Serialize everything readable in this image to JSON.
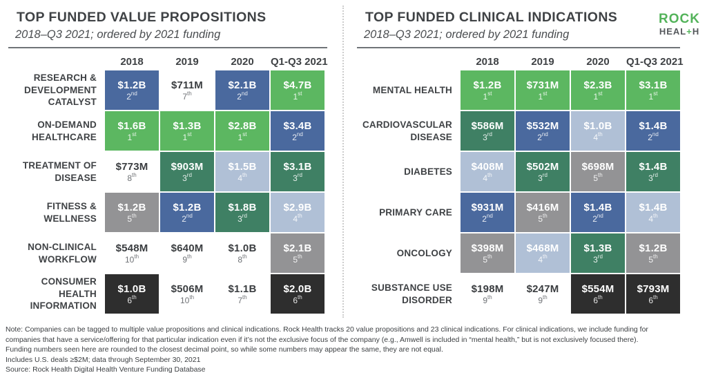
{
  "logo": {
    "line1": "ROCK",
    "line2_pre": "HEAL",
    "line2_plus": "+",
    "line2_post": "H"
  },
  "rank_colors": {
    "1": "#5cb761",
    "2": "#4a699e",
    "3": "#3f8064",
    "4": "#b0c0d6",
    "5": "#939395",
    "6": "#2e2e2e",
    "unranked": "#ffffff"
  },
  "text_colors": {
    "on_color": "#ffffff",
    "on_white_amount": "#3a3d40",
    "on_white_rank": "#6e7175",
    "title": "#3f4245",
    "logo_green": "#53b35a",
    "logo_gray": "#55585c"
  },
  "chart_data": [
    {
      "type": "heatmap",
      "title": "TOP FUNDED VALUE PROPOSITIONS",
      "subtitle": "2018–Q3 2021; ordered by 2021 funding",
      "columns": [
        "2018",
        "2019",
        "2020",
        "Q1-Q3 2021"
      ],
      "rows": [
        {
          "label": "RESEARCH & DEVELOPMENT CATALYST",
          "cells": [
            {
              "value": "$1.2B",
              "rank": 2
            },
            {
              "value": "$711M",
              "rank": 7
            },
            {
              "value": "$2.1B",
              "rank": 2
            },
            {
              "value": "$4.7B",
              "rank": 1
            }
          ]
        },
        {
          "label": "ON-DEMAND HEALTHCARE",
          "cells": [
            {
              "value": "$1.6B",
              "rank": 1
            },
            {
              "value": "$1.3B",
              "rank": 1
            },
            {
              "value": "$2.8B",
              "rank": 1
            },
            {
              "value": "$3.4B",
              "rank": 2
            }
          ]
        },
        {
          "label": "TREATMENT OF DISEASE",
          "cells": [
            {
              "value": "$773M",
              "rank": 8
            },
            {
              "value": "$903M",
              "rank": 3
            },
            {
              "value": "$1.5B",
              "rank": 4
            },
            {
              "value": "$3.1B",
              "rank": 3
            }
          ]
        },
        {
          "label": "FITNESS & WELLNESS",
          "cells": [
            {
              "value": "$1.2B",
              "rank": 5
            },
            {
              "value": "$1.2B",
              "rank": 2
            },
            {
              "value": "$1.8B",
              "rank": 3
            },
            {
              "value": "$2.9B",
              "rank": 4
            }
          ]
        },
        {
          "label": "NON-CLINICAL WORKFLOW",
          "cells": [
            {
              "value": "$548M",
              "rank": 10
            },
            {
              "value": "$640M",
              "rank": 9
            },
            {
              "value": "$1.0B",
              "rank": 8
            },
            {
              "value": "$2.1B",
              "rank": 5
            }
          ]
        },
        {
          "label": "CONSUMER HEALTH INFORMATION",
          "cells": [
            {
              "value": "$1.0B",
              "rank": 6
            },
            {
              "value": "$506M",
              "rank": 10
            },
            {
              "value": "$1.1B",
              "rank": 7
            },
            {
              "value": "$2.0B",
              "rank": 6
            }
          ]
        }
      ]
    },
    {
      "type": "heatmap",
      "title": "TOP FUNDED CLINICAL INDICATIONS",
      "subtitle": "2018–Q3 2021; ordered by 2021 funding",
      "columns": [
        "2018",
        "2019",
        "2020",
        "Q1-Q3 2021"
      ],
      "rows": [
        {
          "label": "MENTAL HEALTH",
          "cells": [
            {
              "value": "$1.2B",
              "rank": 1
            },
            {
              "value": "$731M",
              "rank": 1
            },
            {
              "value": "$2.3B",
              "rank": 1
            },
            {
              "value": "$3.1B",
              "rank": 1
            }
          ]
        },
        {
          "label": "CARDIOVASCULAR DISEASE",
          "cells": [
            {
              "value": "$586M",
              "rank": 3
            },
            {
              "value": "$532M",
              "rank": 2
            },
            {
              "value": "$1.0B",
              "rank": 4
            },
            {
              "value": "$1.4B",
              "rank": 2
            }
          ]
        },
        {
          "label": "DIABETES",
          "cells": [
            {
              "value": "$408M",
              "rank": 4
            },
            {
              "value": "$502M",
              "rank": 3
            },
            {
              "value": "$698M",
              "rank": 5
            },
            {
              "value": "$1.4B",
              "rank": 3
            }
          ]
        },
        {
          "label": "PRIMARY CARE",
          "cells": [
            {
              "value": "$931M",
              "rank": 2
            },
            {
              "value": "$416M",
              "rank": 5
            },
            {
              "value": "$1.4B",
              "rank": 2
            },
            {
              "value": "$1.4B",
              "rank": 4
            }
          ]
        },
        {
          "label": "ONCOLOGY",
          "cells": [
            {
              "value": "$398M",
              "rank": 5
            },
            {
              "value": "$468M",
              "rank": 4
            },
            {
              "value": "$1.3B",
              "rank": 3
            },
            {
              "value": "$1.2B",
              "rank": 5
            }
          ]
        },
        {
          "label": "SUBSTANCE USE DISORDER",
          "cells": [
            {
              "value": "$198M",
              "rank": 9
            },
            {
              "value": "$247M",
              "rank": 9
            },
            {
              "value": "$554M",
              "rank": 6
            },
            {
              "value": "$793M",
              "rank": 6
            }
          ]
        }
      ]
    }
  ],
  "footnotes": [
    "Note: Companies can be tagged to multiple value propositions and clinical indications. Rock Health tracks 20 value propositions and 23 clinical indications. For clinical indications, we include funding for",
    "companies that have a service/offering for that particular indication even if it’s not the exclusive focus of the company (e.g., Amwell is included in “mental health,” but is not exclusively focused there).",
    "Funding numbers seen here are rounded to the closest decimal point, so while some numbers may appear the same, they are not equal.",
    "Includes U.S. deals ≥$2M; data through September 30, 2021",
    "Source: Rock Health Digital Health Venture Funding Database"
  ]
}
